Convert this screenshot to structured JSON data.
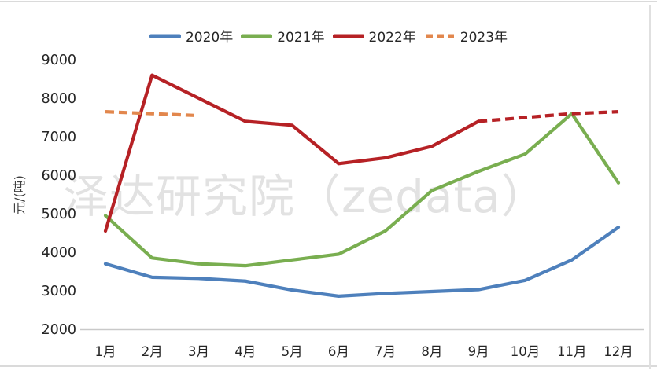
{
  "chart_data": {
    "type": "line",
    "title": "",
    "xlabel": "",
    "ylabel": "元/(吨)",
    "ylim": [
      2000,
      9000
    ],
    "ytick_step": 1000,
    "grid": false,
    "legend_position": "top",
    "watermark": "泽达研究院（zedata）",
    "categories": [
      "1月",
      "2月",
      "3月",
      "4月",
      "5月",
      "6月",
      "7月",
      "8月",
      "9月",
      "10月",
      "11月",
      "12月"
    ],
    "series": [
      {
        "name": "2020年",
        "color": "#4e80bc",
        "dash": "solid",
        "values": [
          3700,
          3350,
          3320,
          3250,
          3020,
          2860,
          2930,
          2980,
          3030,
          3270,
          3800,
          4650
        ]
      },
      {
        "name": "2021年",
        "color": "#79ae50",
        "dash": "solid",
        "values": [
          4950,
          3850,
          3700,
          3650,
          3800,
          3950,
          4550,
          5600,
          6100,
          6550,
          7600,
          5800
        ]
      },
      {
        "name": "2022年",
        "color": "#b62125",
        "dash": "solid-then-dashed",
        "dash_from_index": 8,
        "values": [
          4550,
          8600,
          8000,
          7400,
          7300,
          6300,
          6450,
          6750,
          7400,
          7500,
          7600,
          7650
        ]
      },
      {
        "name": "2023年",
        "color": "#e2874d",
        "dash": "dashed",
        "values": [
          7650,
          7600,
          7550,
          null,
          null,
          null,
          null,
          null,
          null,
          null,
          null,
          null
        ]
      }
    ]
  }
}
